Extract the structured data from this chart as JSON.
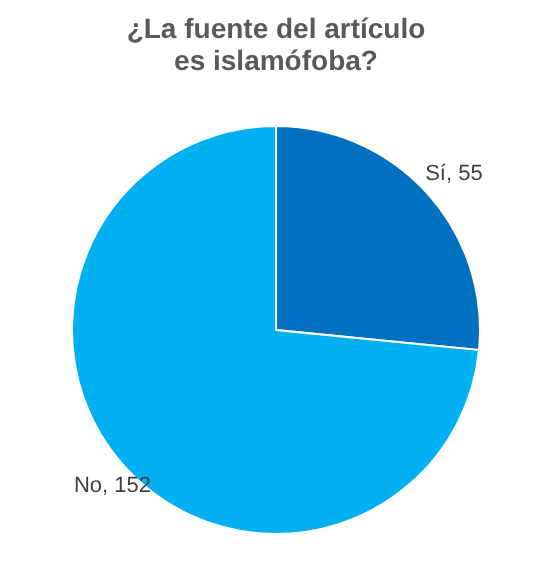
{
  "chart_data": {
    "type": "pie",
    "title": "¿La fuente del artículo es islamófoba?",
    "categories": [
      "Sí",
      "No"
    ],
    "values": [
      55,
      152
    ],
    "colors": [
      "#0070c0",
      "#00b0f0"
    ],
    "value_labels": [
      ", 55",
      ", 152"
    ]
  }
}
